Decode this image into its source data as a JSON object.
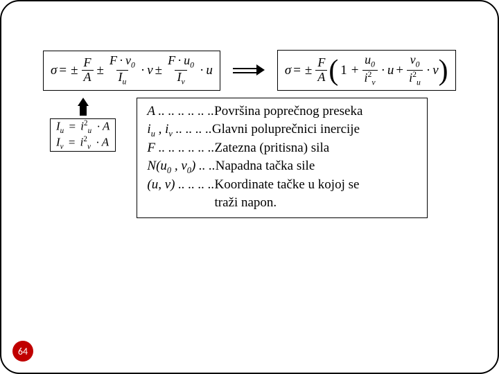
{
  "page_number": "64",
  "colors": {
    "border": "#000000",
    "badge_bg": "#c00000",
    "badge_text": "#ffffff",
    "text": "#000000",
    "background": "#ffffff"
  },
  "equations": {
    "sigma_long_terms": {
      "lhs": "σ",
      "t1_num": "F",
      "t1_den": "A",
      "t2_num_a": "F",
      "t2_num_b": "v",
      "t2_num_sub": "0",
      "t2_den": "I",
      "t2_den_sub": "u",
      "t2_mult": "v",
      "t3_num_a": "F",
      "t3_num_b": "u",
      "t3_num_sub": "0",
      "t3_den": "I",
      "t3_den_sub": "v",
      "t3_mult": "u"
    },
    "sigma_compact": {
      "lhs": "σ",
      "lead_num": "F",
      "lead_den": "A",
      "one": "1",
      "a_num": "u",
      "a_num_sub": "0",
      "a_den": "i",
      "a_den_sub": "v",
      "a_mult": "u",
      "b_num": "v",
      "b_num_sub": "0",
      "b_den": "i",
      "b_den_sub": "u",
      "b_mult": "v"
    },
    "radii": {
      "Iu_lhs": "I",
      "Iu_lhs_sub": "u",
      "Iu_r": "i",
      "Iu_r_sub": "u",
      "Iu_A": "A",
      "Iv_lhs": "I",
      "Iv_lhs_sub": "v",
      "Iv_r": "i",
      "Iv_r_sub": "v",
      "Iv_A": "A",
      "sq": "2"
    }
  },
  "defs": {
    "A_sym": "A",
    "A_dots": " .. .. .. .. .. ..  ",
    "A_desc": "Površina poprečnog preseka",
    "i_sym_a": "i",
    "i_sub_a": "u",
    "i_comma": " , ",
    "i_sym_b": "i",
    "i_sub_b": "v",
    "i_dots": " .. .. .. ..  ",
    "i_desc": "Glavni poluprečnici inercije",
    "F_sym": "F",
    "F_dots": " .. .. .. .. .. ..  ",
    "F_desc": "Zatezna (pritisna) sila",
    "N_sym_open": "N(u",
    "N_sub1": "0",
    "N_mid": " , v",
    "N_sub2": "0",
    "N_close": ")",
    "N_dots": " .. ..  ",
    "N_desc": "Napadna tačka sile",
    "uv_sym": "(u, v)",
    "uv_dots": "  .. .. .. ..  ",
    "uv_desc": "Koordinate tačke u kojoj se",
    "uv_desc2": "traži napon."
  }
}
